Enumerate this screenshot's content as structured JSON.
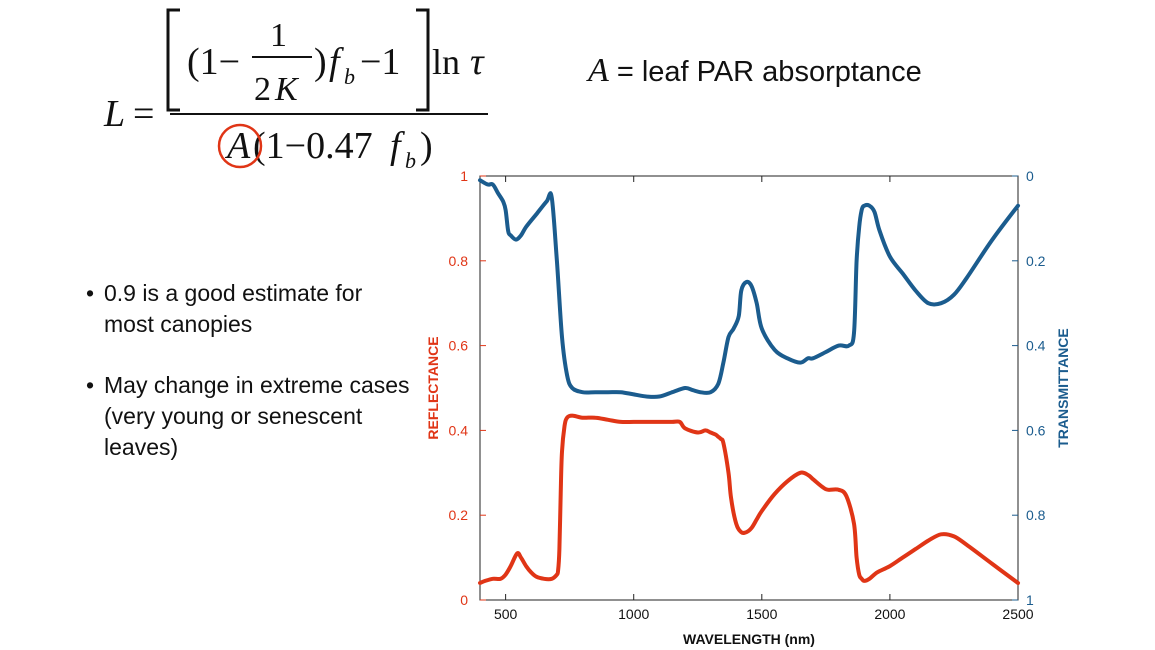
{
  "definition": {
    "variable": "A",
    "text": "= leaf PAR absorptance"
  },
  "bullets": [
    "0.9 is a good estimate for most canopies",
    "May change in extreme cases (very young or senescent leaves)"
  ],
  "colors": {
    "reflectance": "#e03516",
    "transmittance": "#1b5c8e",
    "highlight_circle": "#e03516"
  },
  "chart_data": {
    "type": "line",
    "xlabel": "WAVELENGTH (nm)",
    "ylabel_left": "REFLECTANCE",
    "ylabel_right": "TRANSMITTANCE",
    "xlim": [
      400,
      2500
    ],
    "ylim_left": [
      0,
      1
    ],
    "ylim_right": [
      0,
      1
    ],
    "right_axis_inverted": true,
    "x_ticks": [
      500,
      1000,
      1500,
      2000,
      2500
    ],
    "y_ticks_left": [
      0,
      0.2,
      0.4,
      0.6,
      0.8,
      1
    ],
    "y_ticks_right": [
      0,
      0.2,
      0.4,
      0.6,
      0.8,
      1
    ],
    "x_tick_labels": [
      "500",
      "1000",
      "1500",
      "2000",
      "2500"
    ],
    "y_tick_labels_left": [
      "0",
      "0.2",
      "0.4",
      "0.6",
      "0.8",
      "1"
    ],
    "y_tick_labels_right": [
      "0",
      "0.2",
      "0.4",
      "0.6",
      "0.8",
      "1"
    ],
    "grid": false,
    "series": [
      {
        "axis": "left",
        "color": "#e03516",
        "x": [
          400,
          420,
          450,
          480,
          500,
          520,
          545,
          560,
          580,
          600,
          620,
          650,
          680,
          700,
          705,
          710,
          715,
          720,
          730,
          740,
          760,
          800,
          850,
          900,
          950,
          1000,
          1050,
          1100,
          1150,
          1180,
          1200,
          1250,
          1280,
          1300,
          1320,
          1330,
          1340,
          1350,
          1370,
          1380,
          1400,
          1420,
          1440,
          1460,
          1480,
          1500,
          1550,
          1600,
          1650,
          1680,
          1700,
          1740,
          1760,
          1800,
          1830,
          1860,
          1870,
          1880,
          1890,
          1900,
          1920,
          1950,
          2000,
          2050,
          2100,
          2150,
          2200,
          2250,
          2300,
          2400,
          2500
        ],
        "y": [
          0.04,
          0.045,
          0.05,
          0.05,
          0.06,
          0.08,
          0.11,
          0.1,
          0.08,
          0.065,
          0.055,
          0.05,
          0.05,
          0.06,
          0.07,
          0.12,
          0.25,
          0.35,
          0.41,
          0.43,
          0.435,
          0.43,
          0.43,
          0.425,
          0.42,
          0.42,
          0.42,
          0.42,
          0.42,
          0.42,
          0.405,
          0.395,
          0.4,
          0.395,
          0.39,
          0.385,
          0.38,
          0.37,
          0.3,
          0.24,
          0.18,
          0.16,
          0.16,
          0.17,
          0.19,
          0.21,
          0.25,
          0.28,
          0.3,
          0.295,
          0.285,
          0.265,
          0.26,
          0.26,
          0.245,
          0.18,
          0.1,
          0.06,
          0.05,
          0.045,
          0.05,
          0.065,
          0.08,
          0.1,
          0.12,
          0.14,
          0.155,
          0.15,
          0.13,
          0.085,
          0.04
        ]
      },
      {
        "axis": "right",
        "color": "#1b5c8e",
        "x": [
          400,
          430,
          450,
          470,
          490,
          500,
          510,
          520,
          540,
          560,
          580,
          620,
          660,
          680,
          700,
          720,
          740,
          760,
          800,
          850,
          900,
          950,
          1000,
          1050,
          1100,
          1150,
          1200,
          1230,
          1260,
          1300,
          1330,
          1350,
          1370,
          1390,
          1410,
          1420,
          1440,
          1460,
          1480,
          1500,
          1550,
          1600,
          1650,
          1680,
          1700,
          1750,
          1800,
          1840,
          1860,
          1870,
          1880,
          1890,
          1900,
          1920,
          1940,
          1960,
          2000,
          2050,
          2100,
          2150,
          2200,
          2250,
          2300,
          2400,
          2500
        ],
        "y": [
          0.01,
          0.02,
          0.02,
          0.04,
          0.06,
          0.08,
          0.13,
          0.14,
          0.15,
          0.14,
          0.12,
          0.09,
          0.06,
          0.05,
          0.2,
          0.38,
          0.47,
          0.5,
          0.51,
          0.51,
          0.51,
          0.51,
          0.515,
          0.52,
          0.52,
          0.51,
          0.5,
          0.505,
          0.51,
          0.51,
          0.49,
          0.44,
          0.38,
          0.36,
          0.33,
          0.27,
          0.25,
          0.26,
          0.3,
          0.36,
          0.41,
          0.43,
          0.44,
          0.43,
          0.43,
          0.415,
          0.4,
          0.4,
          0.37,
          0.2,
          0.12,
          0.08,
          0.07,
          0.07,
          0.085,
          0.13,
          0.19,
          0.23,
          0.27,
          0.3,
          0.3,
          0.28,
          0.24,
          0.15,
          0.07
        ]
      }
    ]
  }
}
